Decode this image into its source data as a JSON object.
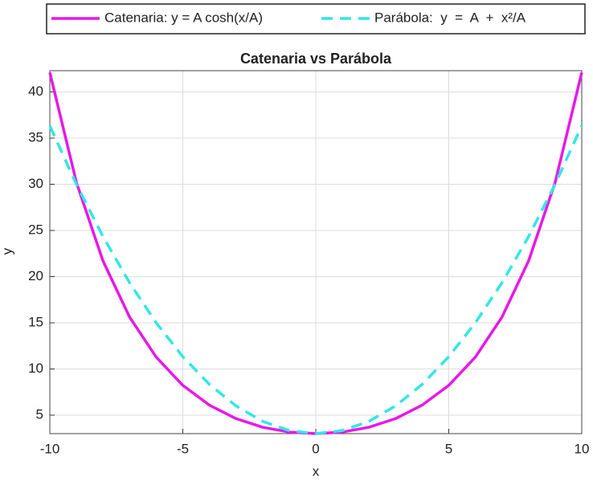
{
  "chart_data": {
    "type": "line",
    "title": "Catenaria vs Parábola",
    "xlabel": "x",
    "ylabel": "y",
    "x": [
      -10,
      -9,
      -8,
      -7,
      -6,
      -5,
      -4,
      -3,
      -2,
      -1,
      0,
      1,
      2,
      3,
      4,
      5,
      6,
      7,
      8,
      9,
      10
    ],
    "series": [
      {
        "name": "Catenaria: y = A cosh(x/A)",
        "color": "#e619e6",
        "dash": false,
        "values": [
          42.099,
          30.203,
          21.692,
          15.614,
          11.287,
          8.225,
          6.086,
          4.629,
          3.692,
          3.168,
          3,
          3.168,
          3.692,
          4.629,
          6.086,
          8.225,
          11.287,
          15.614,
          21.692,
          30.203,
          42.099
        ]
      },
      {
        "name": "Parábola:  y  =  A  +  x²/A",
        "color": "#33e6e6",
        "dash": true,
        "values": [
          36.333,
          30,
          24.333,
          19.333,
          15,
          11.333,
          8.333,
          6,
          4.333,
          3.333,
          3,
          3.333,
          4.333,
          6,
          8.333,
          11.333,
          15,
          19.333,
          24.333,
          30,
          36.333
        ]
      }
    ],
    "xlim": [
      -10,
      10
    ],
    "ylim": [
      3,
      42.3
    ],
    "xticks": [
      -10,
      -5,
      0,
      5,
      10
    ],
    "yticks": [
      5,
      10,
      15,
      20,
      25,
      30,
      35,
      40
    ],
    "grid": true
  }
}
